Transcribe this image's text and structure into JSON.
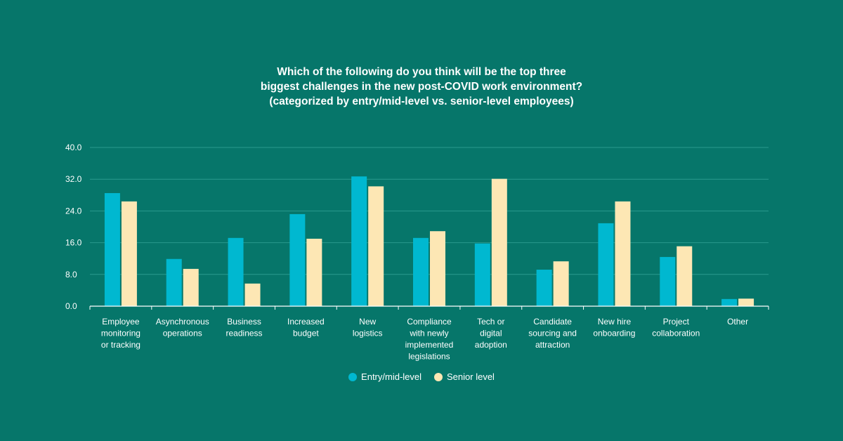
{
  "chart_data": {
    "type": "bar",
    "title_lines": [
      "Which of the following do you think will be the top three",
      "biggest challenges in the new post-COVID work environment?",
      "(categorized by entry/mid-level vs. senior-level employees)"
    ],
    "categories": [
      [
        "Employee",
        "monitoring",
        "or tracking"
      ],
      [
        "Asynchronous",
        "operations"
      ],
      [
        "Business",
        "readiness"
      ],
      [
        "Increased",
        "budget"
      ],
      [
        "New",
        "logistics"
      ],
      [
        "Compliance",
        "with newly",
        "implemented",
        "legislations"
      ],
      [
        "Tech or",
        "digital",
        "adoption"
      ],
      [
        "Candidate",
        "sourcing and",
        "attraction"
      ],
      [
        "New hire",
        "onboarding"
      ],
      [
        "Project",
        "collaboration"
      ],
      [
        "Other"
      ]
    ],
    "series": [
      {
        "name": "Entry/mid-level",
        "color": "#00b8d0",
        "values": [
          28.5,
          11.9,
          17.2,
          23.2,
          32.7,
          17.2,
          15.8,
          9.2,
          20.9,
          12.4,
          1.8
        ]
      },
      {
        "name": "Senior level",
        "color": "#fde7b4",
        "values": [
          26.4,
          9.4,
          5.7,
          17.0,
          30.2,
          18.9,
          32.1,
          11.3,
          26.4,
          15.1,
          1.9
        ]
      }
    ],
    "y_ticks": [
      "0.0",
      "8.0",
      "16.0",
      "24.0",
      "32.0",
      "40.0"
    ],
    "ylim": [
      0,
      40
    ],
    "grid": true,
    "legend_position": "bottom-center"
  }
}
